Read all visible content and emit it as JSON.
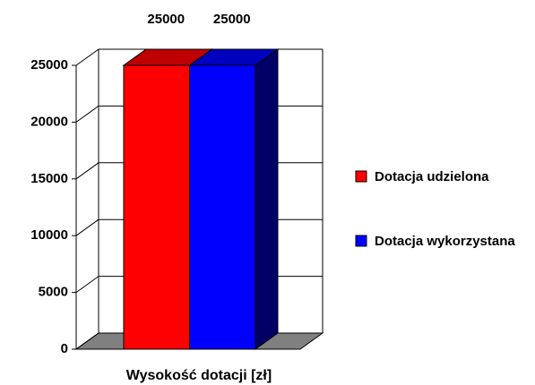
{
  "chart_data": {
    "type": "bar3d",
    "categories": [
      "Wysokość dotacji [zł]"
    ],
    "series": [
      {
        "name": "Dotacja udzielona",
        "color": "#ff0000",
        "values": [
          25000
        ]
      },
      {
        "name": "Dotacja wykorzystana",
        "color": "#0000ff",
        "values": [
          25000
        ]
      }
    ],
    "ylim": [
      0,
      25000
    ],
    "yticks": [
      0,
      5000,
      10000,
      15000,
      20000,
      25000
    ],
    "grid": true,
    "legend": "right",
    "floor_color": "#808080"
  }
}
